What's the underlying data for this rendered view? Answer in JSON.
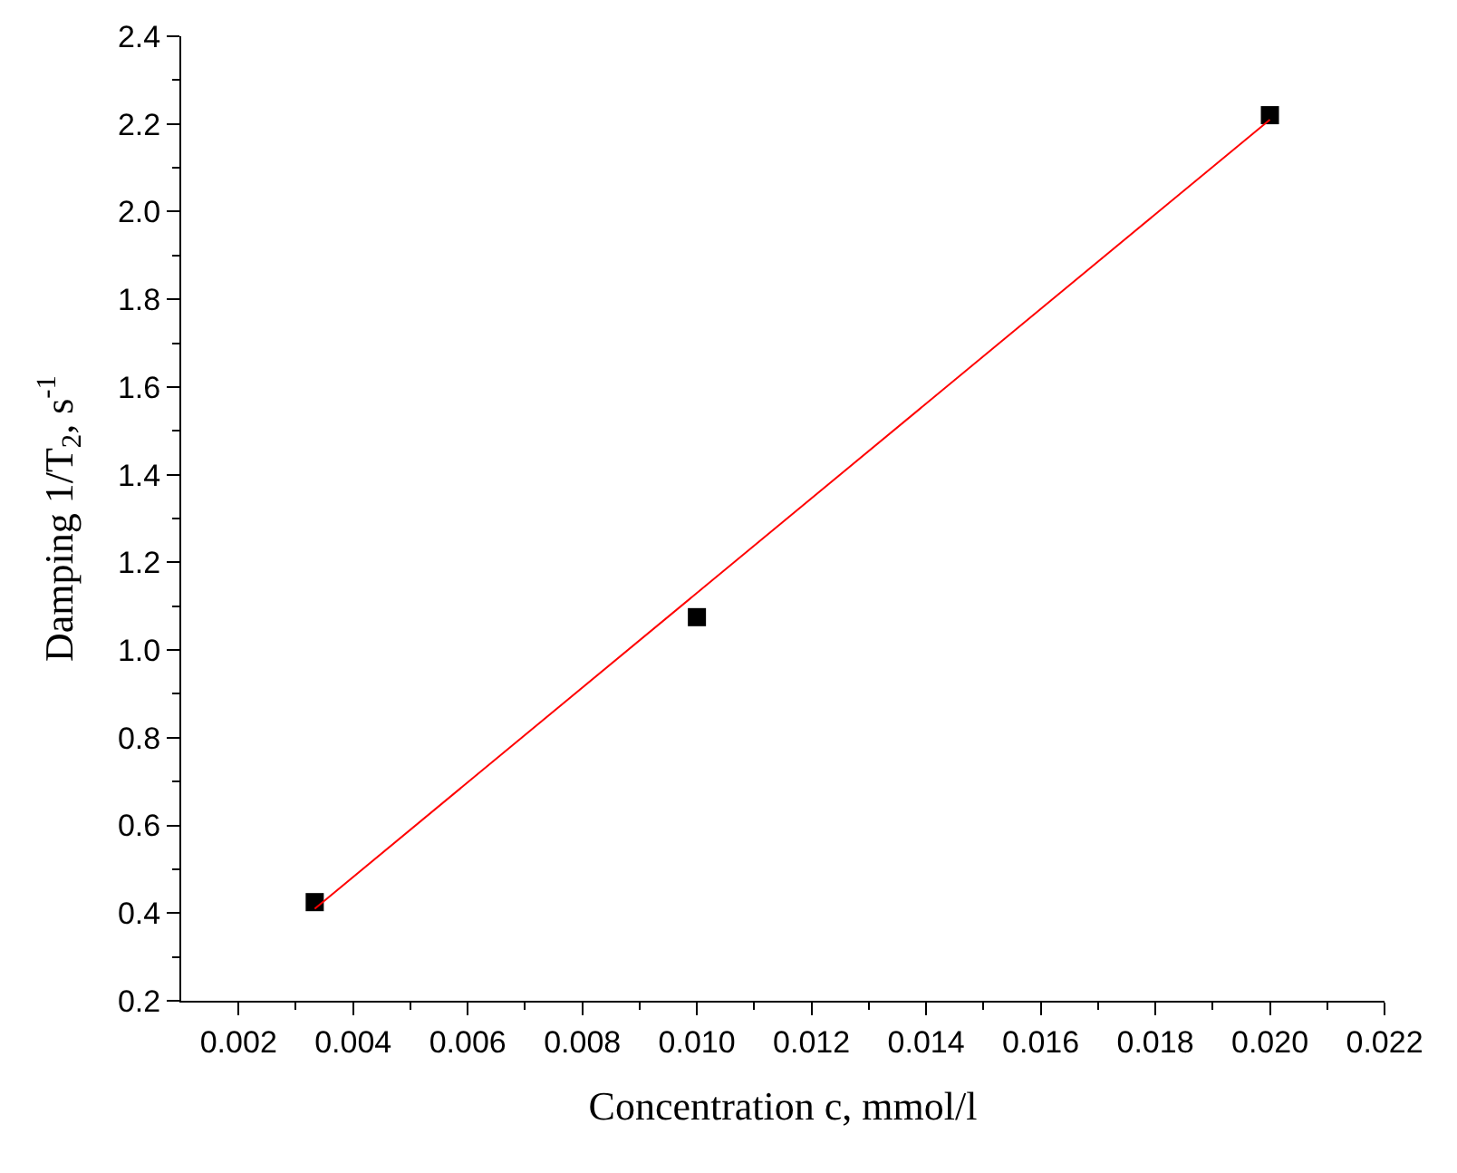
{
  "chart_data": {
    "type": "scatter",
    "xlabel": "Concentration c, mmol/l",
    "ylabel": "Damping 1/T$_{2}$, s$^{-1}$",
    "xlim": [
      0.001,
      0.022
    ],
    "ylim": [
      0.2,
      2.4
    ],
    "xticks": [
      {
        "value": 0.002,
        "label": "0.002"
      },
      {
        "value": 0.003,
        "label": null
      },
      {
        "value": 0.004,
        "label": "0.004"
      },
      {
        "value": 0.005,
        "label": null
      },
      {
        "value": 0.006,
        "label": "0.006"
      },
      {
        "value": 0.007,
        "label": null
      },
      {
        "value": 0.008,
        "label": "0.008"
      },
      {
        "value": 0.009,
        "label": null
      },
      {
        "value": 0.01,
        "label": "0.010"
      },
      {
        "value": 0.011,
        "label": null
      },
      {
        "value": 0.012,
        "label": "0.012"
      },
      {
        "value": 0.013,
        "label": null
      },
      {
        "value": 0.014,
        "label": "0.014"
      },
      {
        "value": 0.015,
        "label": null
      },
      {
        "value": 0.016,
        "label": "0.016"
      },
      {
        "value": 0.017,
        "label": null
      },
      {
        "value": 0.018,
        "label": "0.018"
      },
      {
        "value": 0.019,
        "label": null
      },
      {
        "value": 0.02,
        "label": "0.020"
      },
      {
        "value": 0.021,
        "label": null
      },
      {
        "value": 0.022,
        "label": "0.022"
      }
    ],
    "yticks": [
      0.2,
      {
        "value": 0.3,
        "label": null
      },
      0.4,
      {
        "value": 0.5,
        "label": null
      },
      0.6,
      {
        "value": 0.7,
        "label": null
      },
      0.8,
      {
        "value": 0.9,
        "label": null
      },
      {
        "value": 1.0,
        "label": "1.0"
      },
      {
        "value": 1.1,
        "label": null
      },
      1.2,
      {
        "value": 1.3,
        "label": null
      },
      1.4,
      {
        "value": 1.5,
        "label": null
      },
      1.6,
      {
        "value": 1.7,
        "label": null
      },
      1.8,
      {
        "value": 1.9,
        "label": null
      },
      {
        "value": 2.0,
        "label": "2.0"
      },
      {
        "value": 2.1,
        "label": null
      },
      2.2,
      {
        "value": 2.3,
        "label": null
      },
      2.4
    ],
    "grid": false,
    "series": [
      {
        "marker": "square",
        "color": "#000000",
        "x": [
          0.00333,
          0.01,
          0.02
        ],
        "values": [
          0.425,
          1.075,
          2.22
        ]
      },
      {
        "type": "line",
        "color": "#ff0000",
        "x": [
          0.00333,
          0.02
        ],
        "values": [
          0.41,
          2.21
        ]
      }
    ]
  }
}
